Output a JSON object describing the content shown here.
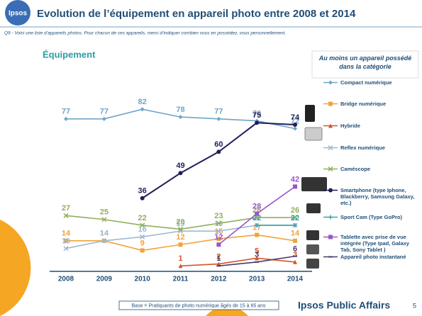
{
  "header": {
    "logo": "Ipsos",
    "title": "Evolution de l’équipement en appareil photo entre 2008 et 2014",
    "question": "Q9 - Voici une liste d’appareils photos. Pour chacun de ces appareils, merci d’indiquer combien vous en possédez, vous personnellement."
  },
  "chart_data": {
    "type": "line",
    "title": "Équipement",
    "subtitle": "Au moins un appareil possédé dans la catégorie",
    "x": [
      2008,
      2009,
      2010,
      2011,
      2012,
      2013,
      2014
    ],
    "xlim": [
      2008,
      2014
    ],
    "ylim": [
      0,
      85
    ],
    "series": [
      {
        "name": "Compact numérique",
        "color": "#6fa5c7",
        "marker": "diamond",
        "values": [
          77,
          77,
          82,
          78,
          77,
          76,
          72
        ]
      },
      {
        "name": "Bridge numérique",
        "color": "#f0a33c",
        "marker": "square",
        "values": [
          14,
          14,
          9,
          12,
          15,
          17,
          14
        ]
      },
      {
        "name": "Hybride",
        "color": "#d4552b",
        "marker": "triangle",
        "values": [
          null,
          null,
          null,
          1,
          2,
          5,
          3
        ]
      },
      {
        "name": "Reflex numérique",
        "color": "#9fb8d2",
        "marker": "x",
        "values": [
          10,
          14,
          16,
          19,
          19,
          22,
          22
        ]
      },
      {
        "name": "Caméscope",
        "color": "#8fb05a",
        "marker": "x",
        "values": [
          27,
          25,
          22,
          20,
          23,
          26,
          26
        ]
      },
      {
        "name": "Smartphone (type Iphone, Blackberry, Samsung Galaxy, etc.)",
        "color": "#1f1f5c",
        "marker": "circle",
        "values": [
          null,
          null,
          36,
          49,
          60,
          75,
          74
        ]
      },
      {
        "name": "Sport Cam (Type GoPro)",
        "color": "#3aa3a8",
        "marker": "plus",
        "values": [
          null,
          null,
          null,
          null,
          null,
          22,
          22
        ]
      },
      {
        "name": "Tablette avec prise de vue intégrée (Type Ipad, Galaxy Tab, Sony Tablet )",
        "color": "#9a55c8",
        "marker": "square",
        "values": [
          null,
          null,
          null,
          null,
          12,
          28,
          42
        ]
      },
      {
        "name": "Appareil photo instantané",
        "color": "#4a3a6a",
        "marker": "dash",
        "values": [
          null,
          null,
          null,
          null,
          1,
          3,
          6
        ]
      }
    ]
  },
  "footer": {
    "base": "Base = Pratiquants de photo numérique âgés de 15 à 65 ans",
    "brand": "Ipsos Public Affairs",
    "page": "5"
  }
}
